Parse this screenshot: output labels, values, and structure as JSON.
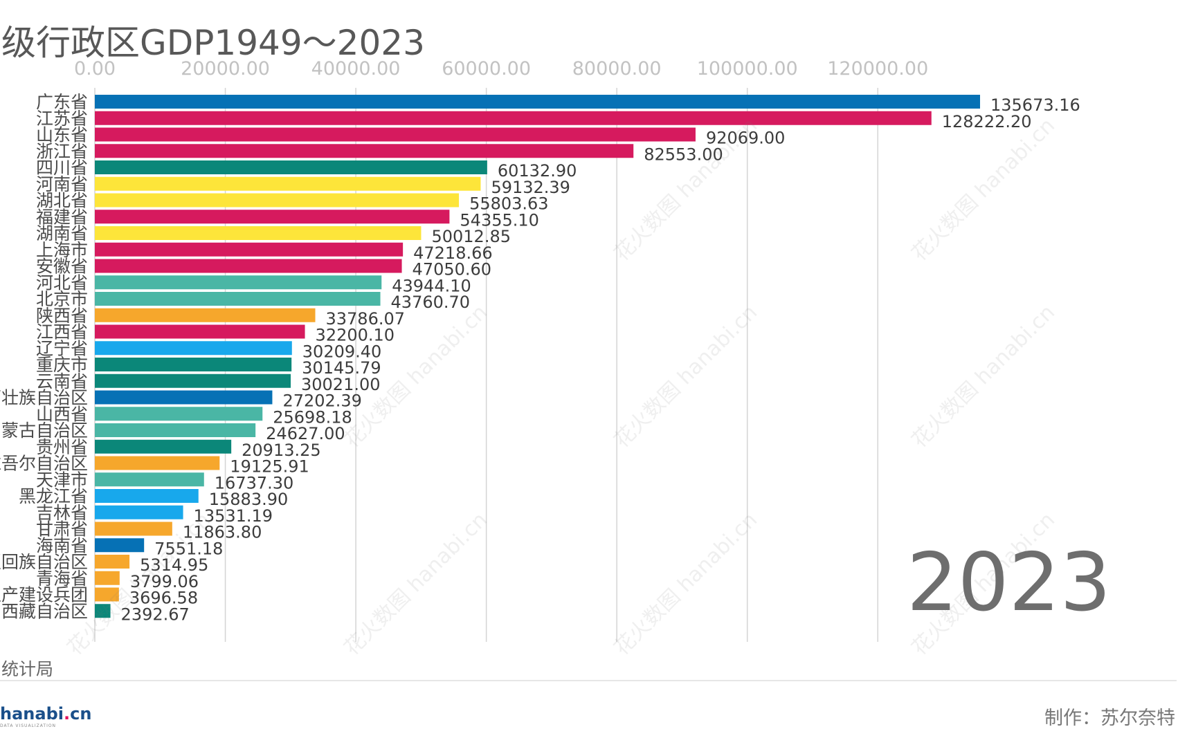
{
  "title": "级行政区GDP1949～2023",
  "year": "2023",
  "source": "统计局",
  "credit": "制作：苏尔奈特",
  "logo": {
    "main": "hanabi",
    "dot": ".",
    "tail": "cn",
    "sub": "DATA VISUALIZATION"
  },
  "watermark": "花火数图 hanabi.cn",
  "chart_data": {
    "type": "bar",
    "orientation": "horizontal",
    "xlim": [
      0,
      135673.16
    ],
    "ticks": [
      0,
      20000,
      40000,
      60000,
      80000,
      100000,
      120000
    ],
    "tick_labels": [
      "0.00",
      "20000.00",
      "40000.00",
      "60000.00",
      "80000.00",
      "100000.00",
      "120000.00"
    ],
    "categories": [
      "广东省",
      "江苏省",
      "山东省",
      "浙江省",
      "四川省",
      "河南省",
      "湖北省",
      "福建省",
      "湖南省",
      "上海市",
      "安徽省",
      "河北省",
      "北京市",
      "陕西省",
      "江西省",
      "辽宁省",
      "重庆市",
      "云南省",
      "广西壮族自治区",
      "山西省",
      "内蒙古自治区",
      "贵州省",
      "新疆维吾尔自治区",
      "天津市",
      "黑龙江省",
      "吉林省",
      "甘肃省",
      "海南省",
      "宁夏回族自治区",
      "青海省",
      "新疆生产建设兵团",
      "西藏自治区"
    ],
    "values": [
      135673.16,
      128222.2,
      92069.0,
      82553.0,
      60132.9,
      59132.39,
      55803.63,
      54355.1,
      50012.85,
      47218.66,
      47050.6,
      43944.1,
      43760.7,
      33786.07,
      32200.1,
      30209.4,
      30145.79,
      30021.0,
      27202.39,
      25698.18,
      24627.0,
      20913.25,
      19125.91,
      16737.3,
      15883.9,
      13531.19,
      11863.8,
      7551.18,
      5314.95,
      3799.06,
      3696.58,
      2392.67
    ],
    "value_labels": [
      "135673.16",
      "128222.20",
      "92069.00",
      "82553.00",
      "60132.90",
      "59132.39",
      "55803.63",
      "54355.10",
      "50012.85",
      "47218.66",
      "47050.60",
      "43944.10",
      "43760.70",
      "33786.07",
      "32200.10",
      "30209.40",
      "30145.79",
      "30021.00",
      "27202.39",
      "25698.18",
      "24627.00",
      "20913.25",
      "19125.91",
      "16737.30",
      "15883.90",
      "13531.19",
      "11863.80",
      "7551.18",
      "5314.95",
      "3799.06",
      "3696.58",
      "2392.67"
    ],
    "colors": [
      "#0671b5",
      "#d61a5e",
      "#d61a5e",
      "#d61a5e",
      "#0b8779",
      "#fde53a",
      "#fde53a",
      "#d61a5e",
      "#fde53a",
      "#d61a5e",
      "#d61a5e",
      "#4ab6a5",
      "#4ab6a5",
      "#f6a72c",
      "#d61a5e",
      "#18a8ec",
      "#0b8779",
      "#0b8779",
      "#0671b5",
      "#4ab6a5",
      "#4ab6a5",
      "#0b8779",
      "#f6a72c",
      "#4ab6a5",
      "#18a8ec",
      "#18a8ec",
      "#f6a72c",
      "#0671b5",
      "#f6a72c",
      "#f6a72c",
      "#f6a72c",
      "#0b8779"
    ]
  }
}
